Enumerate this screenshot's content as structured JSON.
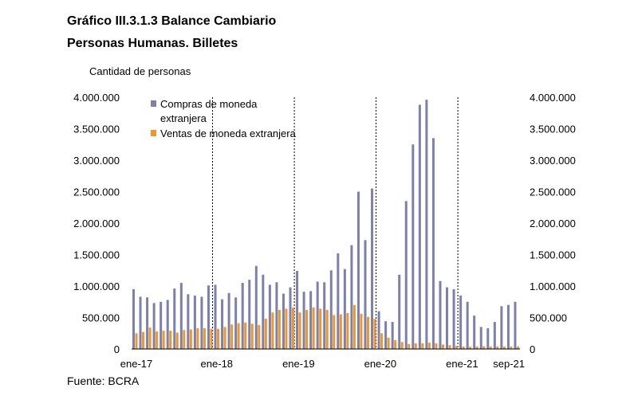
{
  "header": {
    "title_line1": "Gráfico III.3.1.3 Balance Cambiario",
    "title_line2": "Personas Humanas. Billetes",
    "y_axis_label": "Cantidad de personas"
  },
  "footer": {
    "source": "Fuente: BCRA"
  },
  "colors": {
    "compras": "#7c80ad",
    "ventas": "#f0962d",
    "axis": "#000000",
    "divider": "#000000"
  },
  "chart_data": {
    "type": "bar",
    "title": "Balance Cambiario Personas Humanas. Billetes",
    "ylabel": "Cantidad de personas",
    "ylim": [
      0,
      4000000
    ],
    "y_ticks": [
      0,
      500000,
      1000000,
      1500000,
      2000000,
      2500000,
      3000000,
      3500000,
      4000000
    ],
    "y_tick_labels": [
      "0",
      "500.000",
      "1.000.000",
      "1.500.000",
      "2.000.000",
      "2.500.000",
      "3.000.000",
      "3.500.000",
      "4.000.000"
    ],
    "x_tick_labels": [
      "ene-17",
      "ene-18",
      "ene-19",
      "ene-20",
      "ene-21",
      "sep-21"
    ],
    "x_tick_indices": [
      0,
      12,
      24,
      36,
      48,
      56
    ],
    "year_dividers_before_index": [
      12,
      24,
      36,
      48
    ],
    "categories": [
      "ene-17",
      "feb-17",
      "mar-17",
      "abr-17",
      "may-17",
      "jun-17",
      "jul-17",
      "ago-17",
      "sep-17",
      "oct-17",
      "nov-17",
      "dic-17",
      "ene-18",
      "feb-18",
      "mar-18",
      "abr-18",
      "may-18",
      "jun-18",
      "jul-18",
      "ago-18",
      "sep-18",
      "oct-18",
      "nov-18",
      "dic-18",
      "ene-19",
      "feb-19",
      "mar-19",
      "abr-19",
      "may-19",
      "jun-19",
      "jul-19",
      "ago-19",
      "sep-19",
      "oct-19",
      "nov-19",
      "dic-19",
      "ene-20",
      "feb-20",
      "mar-20",
      "abr-20",
      "may-20",
      "jun-20",
      "jul-20",
      "ago-20",
      "sep-20",
      "oct-20",
      "nov-20",
      "dic-20",
      "ene-21",
      "feb-21",
      "mar-21",
      "abr-21",
      "may-21",
      "jun-21",
      "jul-21",
      "ago-21",
      "sep-21"
    ],
    "legend": [
      "Compras de moneda extranjera",
      "Ventas de moneda extranjera"
    ],
    "series": [
      {
        "name": "Compras de moneda extranjera",
        "values": [
          950000,
          830000,
          820000,
          730000,
          750000,
          780000,
          960000,
          1050000,
          870000,
          850000,
          830000,
          1010000,
          1020000,
          790000,
          890000,
          820000,
          1050000,
          1100000,
          1320000,
          1180000,
          1020000,
          1060000,
          880000,
          980000,
          1240000,
          910000,
          920000,
          1070000,
          1060000,
          1250000,
          1520000,
          1270000,
          1650000,
          2500000,
          1730000,
          2550000,
          600000,
          440000,
          430000,
          1180000,
          2350000,
          3250000,
          3880000,
          3960000,
          3350000,
          1080000,
          980000,
          950000,
          850000,
          750000,
          530000,
          350000,
          330000,
          430000,
          680000,
          700000,
          750000
        ]
      },
      {
        "name": "Ventas de moneda extranjera",
        "values": [
          250000,
          270000,
          340000,
          280000,
          290000,
          290000,
          260000,
          300000,
          310000,
          330000,
          330000,
          320000,
          320000,
          350000,
          390000,
          410000,
          420000,
          400000,
          380000,
          480000,
          580000,
          620000,
          640000,
          660000,
          580000,
          620000,
          660000,
          640000,
          620000,
          540000,
          550000,
          570000,
          700000,
          560000,
          510000,
          480000,
          250000,
          180000,
          140000,
          110000,
          80000,
          90000,
          90000,
          100000,
          90000,
          70000,
          60000,
          50000,
          40000,
          35000,
          40000,
          45000,
          40000,
          40000,
          40000,
          40000,
          40000
        ]
      }
    ]
  }
}
